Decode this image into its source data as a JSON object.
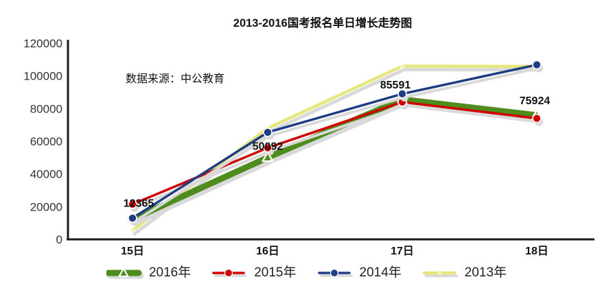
{
  "chart_data": {
    "type": "line",
    "title": "2013-2016国考报名单日增长走势图",
    "annotation": "数据来源：中公教育",
    "categories": [
      "15日",
      "16日",
      "17日",
      "18日"
    ],
    "yticks": [
      0,
      20000,
      40000,
      60000,
      80000,
      100000,
      120000
    ],
    "ylim": [
      0,
      120000
    ],
    "grid": false,
    "legend_position": "bottom",
    "series": [
      {
        "name": "2016年",
        "color": "#4e8c1e",
        "marker": "triangle-open",
        "line_width": 9,
        "values": [
          12365,
          50092,
          85591,
          75924
        ],
        "data_labels": [
          "12365",
          "50092",
          "85591",
          "75924"
        ]
      },
      {
        "name": "2015年",
        "color": "#d00000",
        "marker": "circle",
        "line_width": 3.5,
        "values": [
          21500,
          56000,
          84000,
          74000
        ]
      },
      {
        "name": "2014年",
        "color": "#1f3d85",
        "marker": "circle",
        "line_width": 3.5,
        "values": [
          13000,
          65500,
          89000,
          106800
        ]
      },
      {
        "name": "2013年",
        "color": "#e6e67d",
        "marker": "small-dot",
        "line_width": 4.5,
        "values": [
          5500,
          68000,
          106000,
          105800
        ]
      }
    ],
    "colors": {
      "axis": "#1a1a1a",
      "tick_text": "#333333",
      "label_text": "#111111",
      "shadow": "#d9d9d9"
    }
  }
}
